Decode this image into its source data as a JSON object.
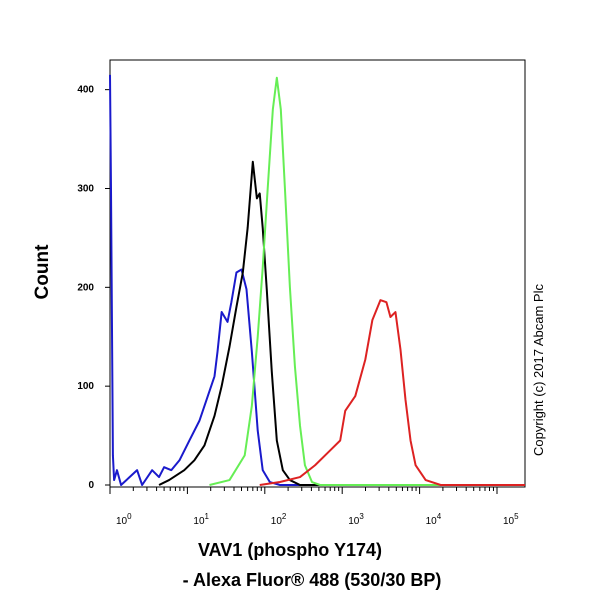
{
  "chart_data": {
    "type": "line",
    "x_label": [
      "VAV1 (phospho Y174)",
      "- Alexa Fluor® 488 (530/30 BP)"
    ],
    "y_label": "Count",
    "annotation": "Copyright (c) 2017 Abcam Plc",
    "x_log": true,
    "xlim": [
      1,
      230000
    ],
    "ylim": [
      0,
      430
    ],
    "xticks": [
      {
        "value": 1,
        "label": "10",
        "exponent": "0"
      },
      {
        "value": 10,
        "label": "10",
        "exponent": "1"
      },
      {
        "value": 100,
        "label": "10",
        "exponent": "2"
      },
      {
        "value": 1000,
        "label": "10",
        "exponent": "3"
      },
      {
        "value": 10000,
        "label": "10",
        "exponent": "4"
      },
      {
        "value": 100000,
        "label": "10",
        "exponent": "5"
      }
    ],
    "yticks": [
      0,
      100,
      200,
      300,
      400
    ],
    "series": [
      {
        "color": "#1a1acc",
        "x": [
          1.0,
          1.03,
          1.09,
          1.13,
          1.23,
          1.39,
          2.24,
          2.6,
          3.5,
          4.3,
          5.0,
          6.2,
          7.9,
          10.6,
          14.3,
          19.3,
          22.4,
          24.5,
          27.7,
          33,
          37,
          43,
          50,
          58,
          68,
          81,
          94,
          116,
          157,
          230000
        ],
        "values": [
          415,
          300,
          30,
          5,
          15,
          0,
          15,
          0,
          15,
          8,
          18,
          15,
          25,
          45,
          65,
          95,
          110,
          135,
          175,
          165,
          185,
          215,
          218,
          198,
          135,
          55,
          15,
          3,
          0,
          0
        ]
      },
      {
        "color": "#000000",
        "x": [
          4.3,
          5.8,
          9.1,
          12.3,
          16.6,
          22.4,
          27.7,
          35,
          43,
          52,
          60,
          70,
          79,
          86,
          94,
          106,
          123,
          143,
          171,
          211,
          285,
          230000
        ],
        "values": [
          0,
          5,
          15,
          25,
          40,
          70,
          100,
          140,
          180,
          215,
          260,
          327,
          290,
          295,
          260,
          198,
          115,
          45,
          15,
          5,
          0,
          0
        ]
      },
      {
        "color": "#66ee55",
        "x": [
          19.3,
          35,
          55,
          68,
          81,
          94,
          109,
          127,
          143,
          161,
          182,
          211,
          245,
          285,
          330,
          407,
          518,
          230000
        ],
        "values": [
          0,
          5,
          30,
          80,
          150,
          220,
          300,
          380,
          412,
          380,
          300,
          200,
          120,
          60,
          20,
          3,
          0,
          0
        ]
      },
      {
        "color": "#dd2222",
        "x": [
          86,
          157,
          285,
          446,
          698,
          942,
          1094,
          1476,
          1990,
          2455,
          3119,
          3724,
          4198,
          4875,
          5663,
          6577,
          7638,
          8872,
          11970,
          18750,
          230000
        ],
        "values": [
          0,
          3,
          8,
          20,
          35,
          45,
          75,
          90,
          127,
          167,
          187,
          185,
          170,
          175,
          137,
          86,
          45,
          20,
          5,
          0,
          0
        ]
      }
    ]
  }
}
